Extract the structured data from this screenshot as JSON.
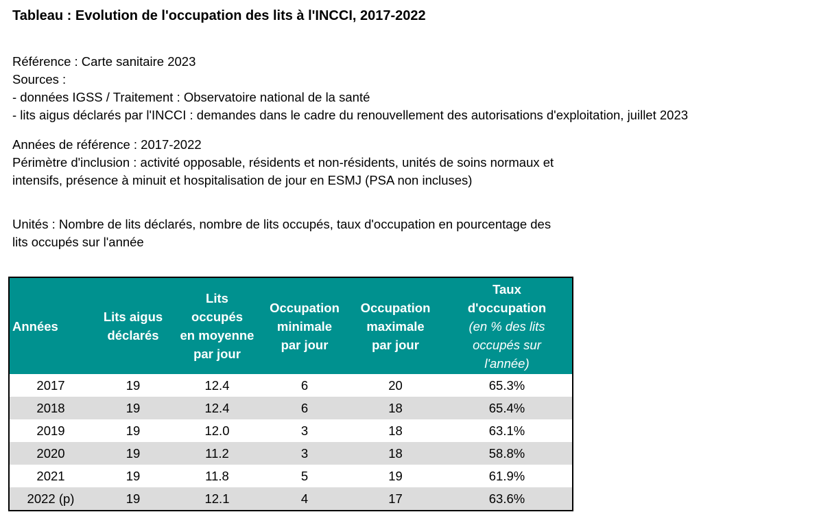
{
  "title": "Tableau : Evolution de l'occupation des lits à l'INCCI, 2017-2022",
  "meta": {
    "reference": "Référence : Carte sanitaire 2023",
    "sources_label": "Sources :",
    "source_1": "- données IGSS / Traitement : Observatoire national de la santé",
    "source_2": "- lits aigus déclarés par l'INCCI : demandes dans le cadre du renouvellement des autorisations d'exploitation, juillet 2023",
    "years": "Années de référence : 2017-2022",
    "perimeter_line1": "Périmètre d'inclusion : activité opposable, résidents et non-résidents, unités de soins normaux et",
    "perimeter_line2": "intensifs, présence à minuit et hospitalisation de jour en ESMJ (PSA non incluses)",
    "units_line1": "Unités : Nombre de lits déclarés, nombre de lits occupés, taux d'occupation en pourcentage des",
    "units_line2": "lits occupés sur l'année"
  },
  "table": {
    "header_color": "#00918f",
    "stripe_color": "#dcdcdc",
    "headers": {
      "annees": "Années",
      "lits_aigus_1": "Lits aigus",
      "lits_aigus_2": "déclarés",
      "lits_occ_1": "Lits",
      "lits_occ_2": "occupés",
      "lits_occ_3": "en moyenne",
      "lits_occ_4": "par jour",
      "occ_min_1": "Occupation",
      "occ_min_2": "minimale",
      "occ_min_3": "par jour",
      "occ_max_1": "Occupation",
      "occ_max_2": "maximale",
      "occ_max_3": "par jour",
      "taux_1": "Taux",
      "taux_2": "d'occupation",
      "taux_sub_1": "(en % des lits",
      "taux_sub_2": "occupés sur",
      "taux_sub_3": "l'année)"
    },
    "rows": [
      [
        "2017",
        "19",
        "12.4",
        "6",
        "20",
        "65.3%"
      ],
      [
        "2018",
        "19",
        "12.4",
        "6",
        "18",
        "65.4%"
      ],
      [
        "2019",
        "19",
        "12.0",
        "3",
        "18",
        "63.1%"
      ],
      [
        "2020",
        "19",
        "11.2",
        "3",
        "18",
        "58.8%"
      ],
      [
        "2021",
        "19",
        "11.8",
        "5",
        "19",
        "61.9%"
      ],
      [
        "2022 (p)",
        "19",
        "12.1",
        "4",
        "17",
        "63.6%"
      ]
    ]
  }
}
